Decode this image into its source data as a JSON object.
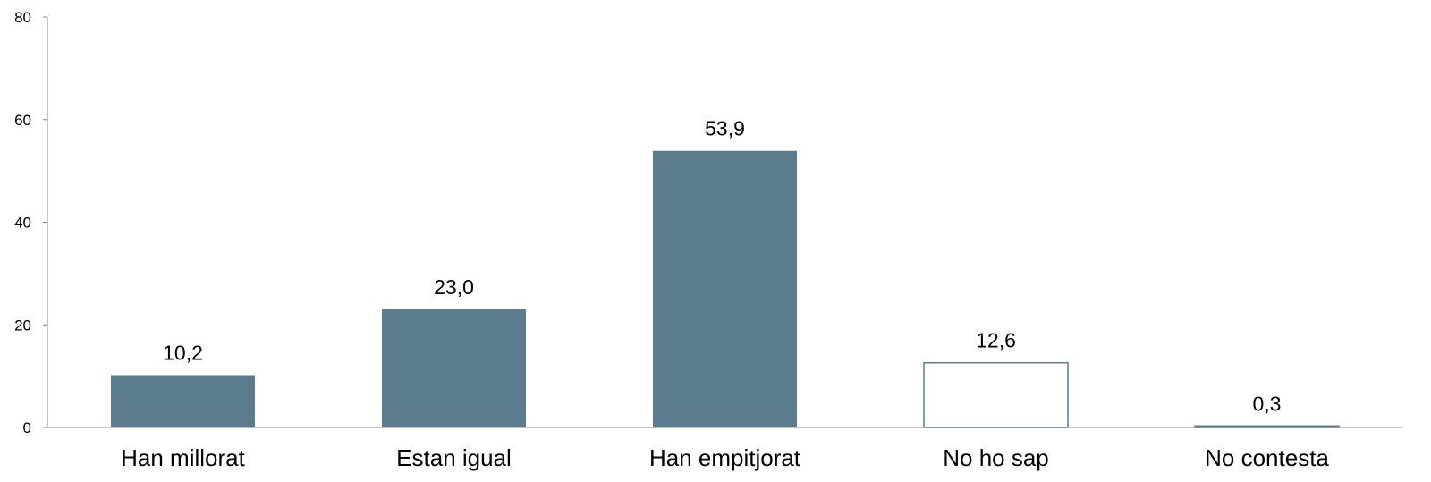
{
  "chart_data": {
    "type": "bar",
    "title": "",
    "xlabel": "",
    "ylabel": "",
    "categories": [
      "Han millorat",
      "Estan igual",
      "Han empitjorat",
      "No ho sap",
      "No contesta"
    ],
    "values": [
      10.2,
      23.0,
      53.9,
      12.6,
      0.3
    ],
    "value_labels": [
      "10,2",
      "23,0",
      "53,9",
      "12,6",
      "0,3"
    ],
    "bar_styles": [
      "filled",
      "filled",
      "filled",
      "outline",
      "outline"
    ],
    "ylim": [
      0,
      80
    ],
    "yticks": [
      0,
      20,
      40,
      60,
      80
    ],
    "ytick_labels": [
      "0",
      "20",
      "40",
      "60",
      "80"
    ],
    "grid": false,
    "legend": "none",
    "colors": {
      "bar_fill": "#5b7b8e",
      "bar_outline": "#5b7b8e",
      "axis": "#808080",
      "text": "#000000"
    }
  }
}
